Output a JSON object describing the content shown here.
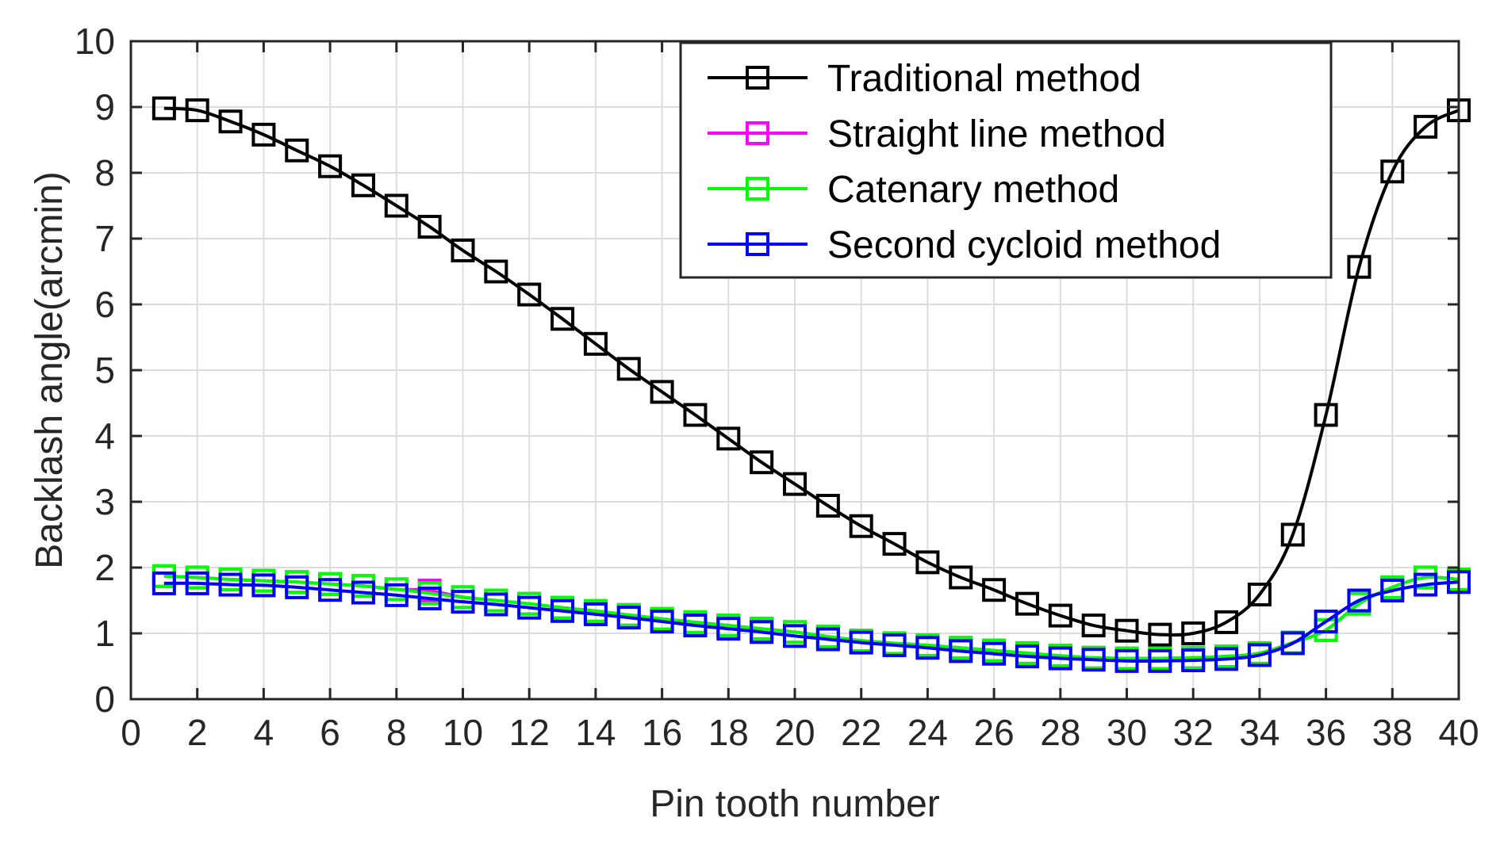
{
  "chart_data": {
    "type": "line",
    "title": "",
    "xlabel": "Pin tooth number",
    "ylabel": "Backlash angle(arcmin)",
    "xlim": [
      0,
      40
    ],
    "ylim": [
      0,
      10
    ],
    "xticks": [
      0,
      2,
      4,
      6,
      8,
      10,
      12,
      14,
      16,
      18,
      20,
      22,
      24,
      26,
      28,
      30,
      32,
      34,
      36,
      38,
      40
    ],
    "yticks": [
      0,
      1,
      2,
      3,
      4,
      5,
      6,
      7,
      8,
      9,
      10
    ],
    "grid": true,
    "legend_position": "top-right",
    "marker": "square",
    "x": [
      1,
      2,
      3,
      4,
      5,
      6,
      7,
      8,
      9,
      10,
      11,
      12,
      13,
      14,
      15,
      16,
      17,
      18,
      19,
      20,
      21,
      22,
      23,
      24,
      25,
      26,
      27,
      28,
      29,
      30,
      31,
      32,
      33,
      34,
      35,
      36,
      37,
      38,
      39,
      40
    ],
    "series": [
      {
        "name": "Traditional method",
        "color": "#000000",
        "values": [
          8.98,
          8.95,
          8.78,
          8.58,
          8.34,
          8.1,
          7.81,
          7.5,
          7.18,
          6.82,
          6.5,
          6.15,
          5.78,
          5.4,
          5.02,
          4.67,
          4.32,
          3.96,
          3.6,
          3.27,
          2.94,
          2.63,
          2.36,
          2.08,
          1.85,
          1.66,
          1.45,
          1.27,
          1.12,
          1.04,
          0.98,
          1.0,
          1.17,
          1.59,
          2.5,
          4.32,
          6.57,
          8.02,
          8.7,
          8.95
        ]
      },
      {
        "name": "Straight line method",
        "color": "#ff00ff",
        "values": [
          1.87,
          1.85,
          1.82,
          1.8,
          1.78,
          1.75,
          1.72,
          1.67,
          1.65,
          1.55,
          1.5,
          1.45,
          1.39,
          1.34,
          1.28,
          1.22,
          1.17,
          1.12,
          1.07,
          1.02,
          0.95,
          0.89,
          0.85,
          0.82,
          0.78,
          0.74,
          0.7,
          0.66,
          0.63,
          0.62,
          0.62,
          0.63,
          0.65,
          0.7,
          0.86,
          1.05,
          1.45,
          1.7,
          1.85,
          1.82
        ]
      },
      {
        "name": "Catenary method",
        "color": "#00ff00",
        "values": [
          1.87,
          1.85,
          1.82,
          1.8,
          1.78,
          1.75,
          1.72,
          1.67,
          1.61,
          1.55,
          1.5,
          1.45,
          1.39,
          1.34,
          1.28,
          1.22,
          1.17,
          1.12,
          1.07,
          1.02,
          0.95,
          0.89,
          0.85,
          0.82,
          0.78,
          0.74,
          0.7,
          0.66,
          0.63,
          0.62,
          0.62,
          0.63,
          0.65,
          0.7,
          0.86,
          1.05,
          1.45,
          1.7,
          1.85,
          1.82
        ]
      },
      {
        "name": "Second cycloid method",
        "color": "#0000ff",
        "values": [
          1.76,
          1.76,
          1.74,
          1.73,
          1.7,
          1.66,
          1.62,
          1.58,
          1.53,
          1.48,
          1.44,
          1.39,
          1.34,
          1.29,
          1.24,
          1.18,
          1.12,
          1.07,
          1.02,
          0.96,
          0.91,
          0.86,
          0.82,
          0.78,
          0.73,
          0.69,
          0.65,
          0.62,
          0.6,
          0.58,
          0.58,
          0.59,
          0.61,
          0.67,
          0.85,
          1.18,
          1.5,
          1.65,
          1.74,
          1.78
        ]
      }
    ]
  }
}
